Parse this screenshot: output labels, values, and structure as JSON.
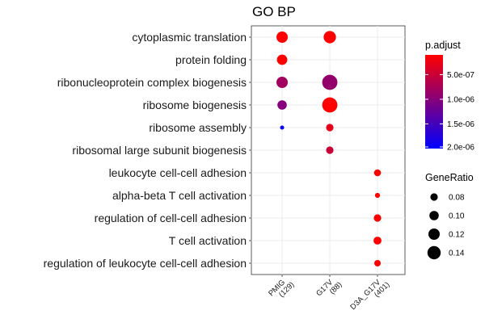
{
  "chart_data": {
    "type": "scatter",
    "title": "GO BP",
    "x_categories": [
      {
        "line1": "PMIG",
        "line2": "(129)"
      },
      {
        "line1": "G17V",
        "line2": "(88)"
      },
      {
        "line1": "D3A_G17V",
        "line2": "(401)"
      }
    ],
    "y_categories": [
      "cytoplasmic translation",
      "protein folding",
      "ribonucleoprotein complex biogenesis",
      "ribosome biogenesis",
      "ribosome assembly",
      "ribosomal large subunit biogenesis",
      "leukocyte cell-cell adhesion",
      "alpha-beta T cell activation",
      "regulation of cell-cell adhesion",
      "T cell activation",
      "regulation of leukocyte cell-cell adhesion"
    ],
    "points": [
      {
        "x": "PMIG",
        "y": "cytoplasmic translation",
        "gene_ratio": 0.12,
        "p_adjust": 1e-07
      },
      {
        "x": "G17V",
        "y": "cytoplasmic translation",
        "gene_ratio": 0.13,
        "p_adjust": 1e-07
      },
      {
        "x": "PMIG",
        "y": "protein folding",
        "gene_ratio": 0.11,
        "p_adjust": 1e-07
      },
      {
        "x": "PMIG",
        "y": "ribonucleoprotein complex biogenesis",
        "gene_ratio": 0.12,
        "p_adjust": 8e-07
      },
      {
        "x": "G17V",
        "y": "ribonucleoprotein complex biogenesis",
        "gene_ratio": 0.16,
        "p_adjust": 9e-07
      },
      {
        "x": "PMIG",
        "y": "ribosome biogenesis",
        "gene_ratio": 0.1,
        "p_adjust": 1e-06
      },
      {
        "x": "G17V",
        "y": "ribosome biogenesis",
        "gene_ratio": 0.16,
        "p_adjust": 1e-07
      },
      {
        "x": "PMIG",
        "y": "ribosome assembly",
        "gene_ratio": 0.045,
        "p_adjust": 2e-06
      },
      {
        "x": "G17V",
        "y": "ribosome assembly",
        "gene_ratio": 0.08,
        "p_adjust": 3e-07
      },
      {
        "x": "G17V",
        "y": "ribosomal large subunit biogenesis",
        "gene_ratio": 0.08,
        "p_adjust": 5e-07
      },
      {
        "x": "D3A_G17V",
        "y": "leukocyte cell-cell adhesion",
        "gene_ratio": 0.075,
        "p_adjust": 1e-07
      },
      {
        "x": "D3A_G17V",
        "y": "alpha-beta T cell activation",
        "gene_ratio": 0.055,
        "p_adjust": 1e-07
      },
      {
        "x": "D3A_G17V",
        "y": "regulation of cell-cell adhesion",
        "gene_ratio": 0.08,
        "p_adjust": 1e-07
      },
      {
        "x": "D3A_G17V",
        "y": "T cell activation",
        "gene_ratio": 0.085,
        "p_adjust": 1e-07
      },
      {
        "x": "D3A_G17V",
        "y": "regulation of leukocyte cell-cell adhesion",
        "gene_ratio": 0.07,
        "p_adjust": 1e-07
      }
    ],
    "color_legend": {
      "title": "p.adjust",
      "low_color": "#ff0000",
      "high_color": "#0000ff",
      "range": [
        1e-07,
        2e-06
      ],
      "ticks": [
        {
          "value": 5e-07,
          "label": "5.0e-07"
        },
        {
          "value": 1e-06,
          "label": "1.0e-06"
        },
        {
          "value": 1.5e-06,
          "label": "1.5e-06"
        },
        {
          "value": 2e-06,
          "label": "2.0e-06"
        }
      ]
    },
    "size_legend": {
      "title": "GeneRatio",
      "entries": [
        {
          "value": 0.08,
          "label": "0.08"
        },
        {
          "value": 0.1,
          "label": "0.10"
        },
        {
          "value": 0.12,
          "label": "0.12"
        },
        {
          "value": 0.14,
          "label": "0.14"
        }
      ]
    },
    "grid": true,
    "legend_position": "right"
  }
}
